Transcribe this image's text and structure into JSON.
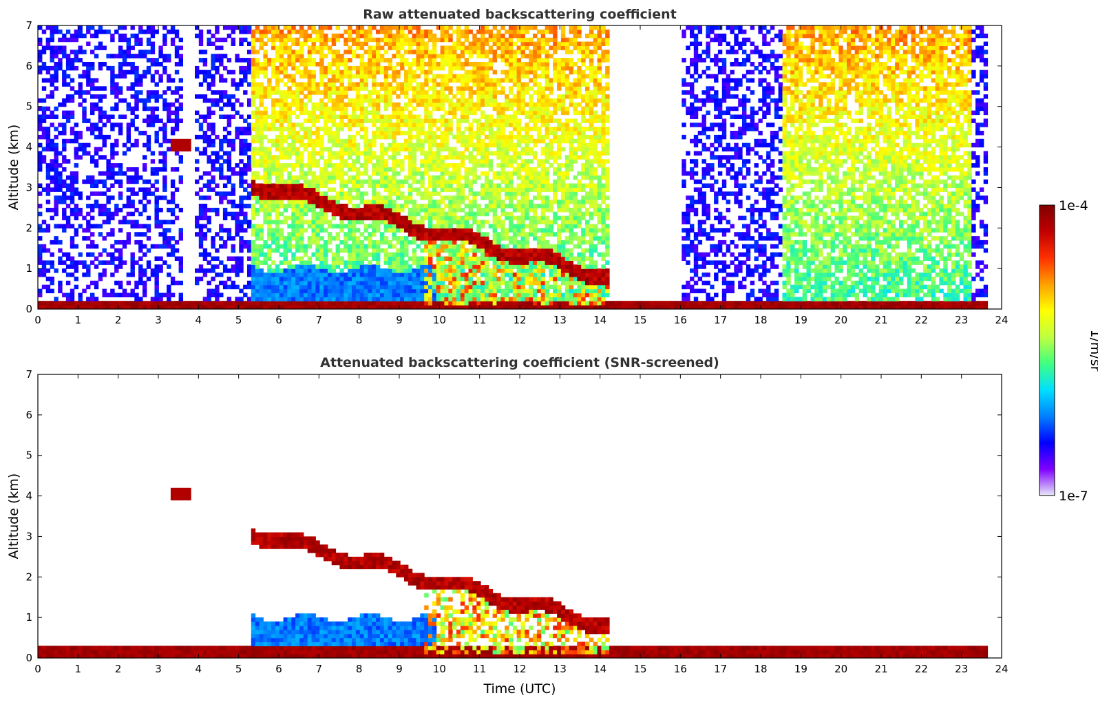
{
  "chart_data": [
    {
      "type": "heatmap",
      "title": "Raw attenuated backscattering coefficient",
      "xlabel": "",
      "ylabel": "Altitude (km)",
      "xlim": [
        0,
        24
      ],
      "ylim": [
        0,
        7
      ],
      "xticks": [
        "0",
        "1",
        "2",
        "3",
        "4",
        "5",
        "6",
        "7",
        "8",
        "9",
        "10",
        "11",
        "12",
        "13",
        "14",
        "15",
        "16",
        "17",
        "18",
        "19",
        "20",
        "21",
        "22",
        "23",
        "24"
      ],
      "yticks": [
        "0",
        "1",
        "2",
        "3",
        "4",
        "5",
        "6",
        "7"
      ],
      "data_end_hour": 23.65,
      "features": [
        {
          "name": "boundary layer",
          "x": [
            0,
            23.65
          ],
          "y": [
            0,
            0.15
          ],
          "level": 0.96
        },
        {
          "name": "elevated aerosol layer",
          "x": [
            5.3,
            9.7
          ],
          "y": [
            0.05,
            1.0
          ],
          "level": 0.3
        },
        {
          "name": "cloud layer",
          "x": [
            5.3,
            14.2
          ],
          "y_start": 3.1,
          "y_end": 0.8,
          "level": 0.97
        },
        {
          "name": "isolated cloud",
          "x": [
            3.3,
            3.75
          ],
          "y": [
            3.9,
            4.2
          ],
          "level": 0.95
        },
        {
          "name": "background noise",
          "x": [
            0,
            23.65
          ],
          "y": [
            0.2,
            7
          ],
          "level": 0.55
        }
      ]
    },
    {
      "type": "heatmap",
      "title": "Attenuated backscattering coefficient (SNR-screened)",
      "xlabel": "Time (UTC)",
      "ylabel": "Altitude (km)",
      "xlim": [
        0,
        24
      ],
      "ylim": [
        0,
        7
      ],
      "xticks": [
        "0",
        "1",
        "2",
        "3",
        "4",
        "5",
        "6",
        "7",
        "8",
        "9",
        "10",
        "11",
        "12",
        "13",
        "14",
        "15",
        "16",
        "17",
        "18",
        "19",
        "20",
        "21",
        "22",
        "23",
        "24"
      ],
      "yticks": [
        "0",
        "1",
        "2",
        "3",
        "4",
        "5",
        "6",
        "7"
      ],
      "data_end_hour": 23.65,
      "features": [
        {
          "name": "boundary layer",
          "x": [
            0,
            23.65
          ],
          "y": [
            0,
            0.25
          ],
          "level": 0.9
        },
        {
          "name": "elevated aerosol layer",
          "x": [
            5.3,
            9.7
          ],
          "y": [
            0.05,
            1.1
          ],
          "level": 0.3
        },
        {
          "name": "cloud layer",
          "x": [
            5.3,
            14.2
          ],
          "y_start": 3.1,
          "y_end": 0.8,
          "level": 0.97
        },
        {
          "name": "isolated cloud",
          "x": [
            3.3,
            3.75
          ],
          "y": [
            3.9,
            4.2
          ],
          "level": 0.95
        }
      ]
    }
  ],
  "colorbar": {
    "label": "1/m/sr",
    "max_label": "1e-4",
    "min_label": "1e-7",
    "colors": [
      "#e8e8f8",
      "#7f00ff",
      "#0000ff",
      "#0080ff",
      "#00e0ff",
      "#40ff80",
      "#c0ff40",
      "#ffff00",
      "#ffa000",
      "#ff3000",
      "#c00000",
      "#800000"
    ]
  }
}
